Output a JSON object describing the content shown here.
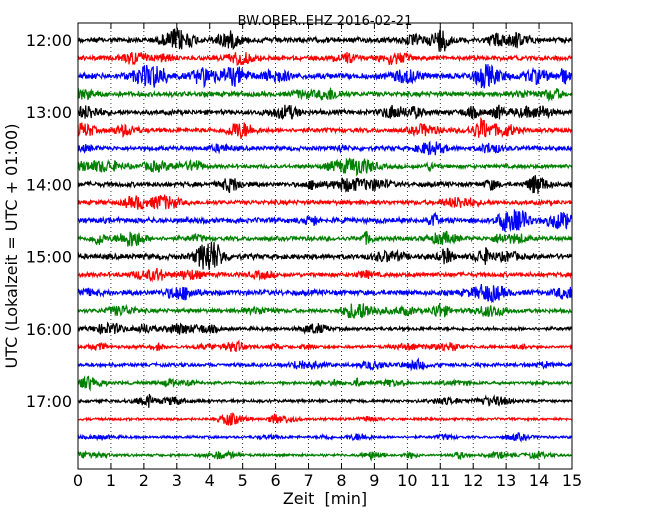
{
  "chart_data": {
    "type": "line",
    "title": "BW.OBER..EHZ 2016-02-21",
    "xlabel": "Zeit  [min]",
    "ylabel": "UTC (Lokalzeit = UTC + 01:00)",
    "xlim": [
      0,
      15
    ],
    "x_ticks": [
      "0",
      "1",
      "2",
      "3",
      "4",
      "5",
      "6",
      "7",
      "8",
      "9",
      "10",
      "11",
      "12",
      "13",
      "14",
      "15"
    ],
    "y_ticks": [
      {
        "label": "12:00",
        "row": 0
      },
      {
        "label": "13:00",
        "row": 4
      },
      {
        "label": "14:00",
        "row": 8
      },
      {
        "label": "15:00",
        "row": 12
      },
      {
        "label": "16:00",
        "row": 16
      },
      {
        "label": "17:00",
        "row": 20
      }
    ],
    "row_interval_minutes": 15,
    "row_start_times": [
      "12:00",
      "12:15",
      "12:30",
      "12:45",
      "13:00",
      "13:15",
      "13:30",
      "13:45",
      "14:00",
      "14:15",
      "14:30",
      "14:45",
      "15:00",
      "15:15",
      "15:30",
      "15:45",
      "16:00",
      "16:15",
      "16:30",
      "16:45",
      "17:00",
      "17:15",
      "17:30",
      "17:45"
    ],
    "colors": [
      "#000000",
      "#ff0000",
      "#0000ff",
      "#008000"
    ],
    "vertical_grid": "dotted",
    "traces_relative_amplitude": [
      0.55,
      0.45,
      0.6,
      0.5,
      0.5,
      0.45,
      0.45,
      0.4,
      0.5,
      0.45,
      0.55,
      0.45,
      0.55,
      0.45,
      0.55,
      0.4,
      0.35,
      0.3,
      0.35,
      0.3,
      0.3,
      0.25,
      0.25,
      0.25
    ]
  }
}
